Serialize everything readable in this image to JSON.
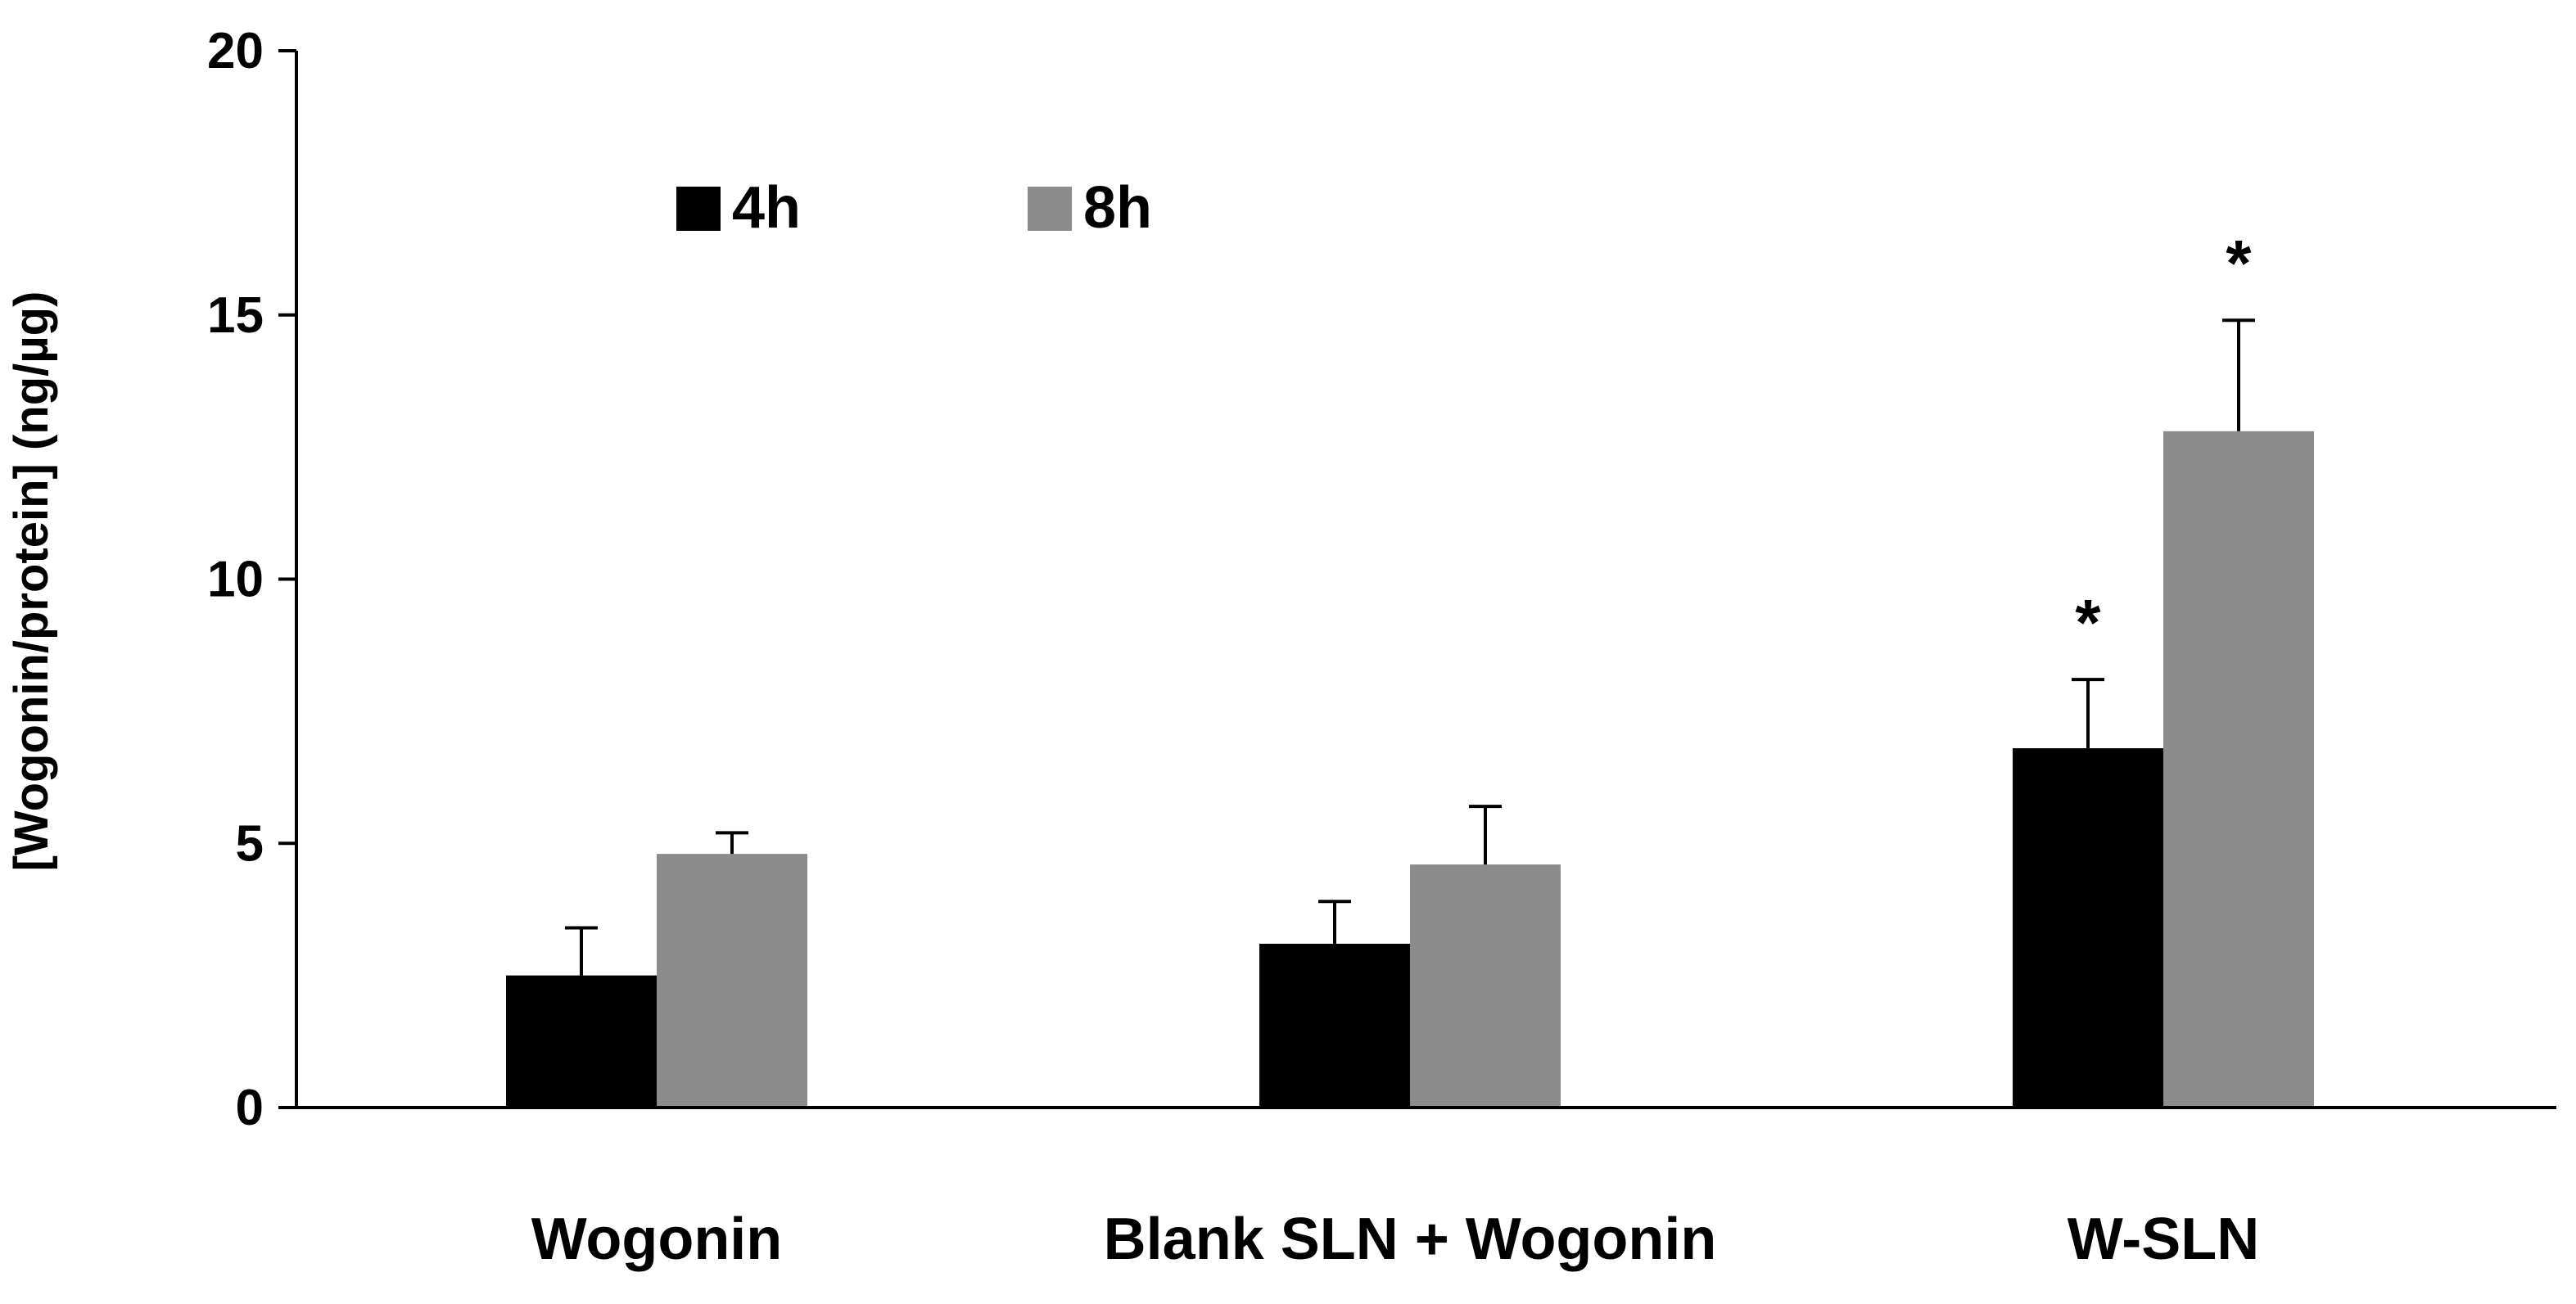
{
  "chart_data": {
    "type": "bar",
    "title": "",
    "xlabel": "",
    "ylabel": "[Wogonin/protein] (ng/µg)",
    "ylim": [
      0,
      20
    ],
    "yticks": [
      0,
      5,
      10,
      15,
      20
    ],
    "categories": [
      "Wogonin",
      "Blank SLN + Wogonin",
      "W-SLN"
    ],
    "series": [
      {
        "name": "4h",
        "color": "#000000",
        "values": [
          2.5,
          3.1,
          6.8
        ],
        "errors": [
          0.9,
          0.8,
          1.3
        ],
        "annotations": [
          "",
          "",
          "*"
        ]
      },
      {
        "name": "8h",
        "color": "#8c8c8c",
        "values": [
          4.8,
          4.6,
          12.8
        ],
        "errors": [
          0.4,
          1.1,
          2.1
        ],
        "annotations": [
          "",
          "",
          "*"
        ]
      }
    ],
    "legend_position": "top-left",
    "grid": false
  }
}
